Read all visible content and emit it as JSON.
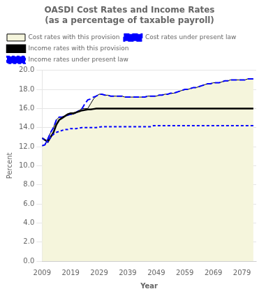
{
  "chart_data": {
    "type": "line",
    "title": "OASDI Cost Rates and Income Rates",
    "subtitle": "(as a percentage of taxable payroll)",
    "x_label": "Year",
    "y_label": "Percent",
    "xlim": [
      2009,
      2084
    ],
    "ylim": [
      0.0,
      20.0
    ],
    "xticks": [
      2009,
      2019,
      2029,
      2039,
      2049,
      2059,
      2069,
      2079
    ],
    "yticks": [
      {
        "value": 0.0,
        "label": "0.0"
      },
      {
        "value": 2.0,
        "label": "2.0"
      },
      {
        "value": 4.0,
        "label": "4.0"
      },
      {
        "value": 6.0,
        "label": "6.0"
      },
      {
        "value": 8.0,
        "label": "8.0"
      },
      {
        "value": 10.0,
        "label": "10.0"
      },
      {
        "value": 12.0,
        "label": "12.0"
      },
      {
        "value": 14.0,
        "label": "14.0"
      },
      {
        "value": 16.0,
        "label": "16.0"
      },
      {
        "value": 18.0,
        "label": "18.0"
      },
      {
        "value": 20.0,
        "label": "20.0"
      }
    ],
    "grid": "y",
    "legend": "upper left",
    "x": [
      2009,
      2010,
      2011,
      2012,
      2013,
      2014,
      2015,
      2016,
      2017,
      2018,
      2019,
      2020,
      2021,
      2022,
      2023,
      2024,
      2025,
      2026,
      2027,
      2028,
      2029,
      2030,
      2031,
      2032,
      2033,
      2034,
      2035,
      2036,
      2037,
      2038,
      2039,
      2040,
      2041,
      2042,
      2043,
      2044,
      2045,
      2046,
      2047,
      2048,
      2049,
      2050,
      2051,
      2052,
      2053,
      2054,
      2055,
      2056,
      2057,
      2058,
      2059,
      2060,
      2061,
      2062,
      2063,
      2064,
      2065,
      2066,
      2067,
      2068,
      2069,
      2070,
      2071,
      2072,
      2073,
      2074,
      2075,
      2076,
      2077,
      2078,
      2079,
      2080,
      2081,
      2082,
      2083
    ],
    "series": [
      {
        "name": "Cost rates with this provision",
        "type": "area",
        "color": "#f5f5dc",
        "line_style": "solid",
        "values": [
          12.1,
          12.2,
          12.8,
          13.5,
          14.0,
          14.8,
          15.1,
          15.1,
          15.2,
          15.3,
          15.4,
          15.4,
          15.6,
          15.8,
          16.0,
          16.0,
          16.0,
          16.5,
          17.0,
          17.3,
          17.5,
          17.5,
          17.4,
          17.4,
          17.3,
          17.3,
          17.3,
          17.3,
          17.3,
          17.2,
          17.2,
          17.2,
          17.2,
          17.2,
          17.2,
          17.2,
          17.2,
          17.3,
          17.3,
          17.3,
          17.3,
          17.4,
          17.4,
          17.5,
          17.5,
          17.6,
          17.6,
          17.7,
          17.8,
          17.9,
          18.0,
          18.0,
          18.1,
          18.2,
          18.2,
          18.3,
          18.4,
          18.5,
          18.6,
          18.6,
          18.7,
          18.7,
          18.7,
          18.8,
          18.9,
          18.9,
          19.0,
          19.0,
          19.0,
          19.0,
          19.0,
          19.0,
          19.1,
          19.1,
          19.1
        ]
      },
      {
        "name": "Cost rates under present law",
        "type": "line",
        "color": "blue",
        "line_style": "long_dashed",
        "values": [
          12.1,
          12.2,
          12.8,
          13.5,
          14.0,
          14.8,
          15.1,
          15.1,
          15.2,
          15.3,
          15.4,
          15.4,
          15.6,
          15.8,
          16.0,
          16.5,
          16.9,
          17.0,
          17.2,
          17.3,
          17.5,
          17.5,
          17.4,
          17.4,
          17.3,
          17.3,
          17.3,
          17.3,
          17.3,
          17.2,
          17.2,
          17.2,
          17.2,
          17.2,
          17.2,
          17.2,
          17.2,
          17.3,
          17.3,
          17.3,
          17.3,
          17.4,
          17.4,
          17.5,
          17.5,
          17.6,
          17.6,
          17.7,
          17.8,
          17.9,
          18.0,
          18.0,
          18.1,
          18.2,
          18.2,
          18.3,
          18.4,
          18.5,
          18.6,
          18.6,
          18.7,
          18.7,
          18.7,
          18.8,
          18.9,
          18.9,
          19.0,
          19.0,
          19.0,
          19.0,
          19.0,
          19.0,
          19.1,
          19.1,
          19.1
        ]
      },
      {
        "name": "Income rates with this provision",
        "type": "line",
        "color": "black",
        "line_style": "solid",
        "values": [
          12.9,
          12.7,
          12.5,
          13.0,
          13.5,
          14.3,
          14.8,
          15.0,
          15.2,
          15.4,
          15.5,
          15.5,
          15.6,
          15.7,
          15.8,
          15.85,
          15.9,
          15.9,
          15.95,
          16.0,
          16.0,
          16.0,
          16.0,
          16.0,
          16.0,
          16.0,
          16.0,
          16.0,
          16.0,
          16.0,
          16.0,
          16.0,
          16.0,
          16.0,
          16.0,
          16.0,
          16.0,
          16.0,
          16.0,
          16.0,
          16.0,
          16.0,
          16.0,
          16.0,
          16.0,
          16.0,
          16.0,
          16.0,
          16.0,
          16.0,
          16.0,
          16.0,
          16.0,
          16.0,
          16.0,
          16.0,
          16.0,
          16.0,
          16.0,
          16.0,
          16.0,
          16.0,
          16.0,
          16.0,
          16.0,
          16.0,
          16.0,
          16.0,
          16.0,
          16.0,
          16.0,
          16.0,
          16.0,
          16.0,
          16.0
        ]
      },
      {
        "name": "Income rates under present law",
        "type": "line",
        "color": "blue",
        "line_style": "dashed",
        "values": [
          12.9,
          12.7,
          12.5,
          13.0,
          13.3,
          13.5,
          13.6,
          13.7,
          13.8,
          13.8,
          13.9,
          13.9,
          13.9,
          13.95,
          14.0,
          14.0,
          14.0,
          14.0,
          14.0,
          14.0,
          14.05,
          14.1,
          14.1,
          14.1,
          14.1,
          14.1,
          14.1,
          14.1,
          14.1,
          14.1,
          14.1,
          14.1,
          14.1,
          14.1,
          14.1,
          14.1,
          14.1,
          14.1,
          14.1,
          14.2,
          14.2,
          14.2,
          14.2,
          14.2,
          14.2,
          14.2,
          14.2,
          14.2,
          14.2,
          14.2,
          14.2,
          14.2,
          14.2,
          14.2,
          14.2,
          14.2,
          14.2,
          14.2,
          14.2,
          14.2,
          14.2,
          14.2,
          14.2,
          14.2,
          14.2,
          14.2,
          14.2,
          14.2,
          14.2,
          14.2,
          14.2,
          14.2,
          14.2,
          14.2,
          14.2
        ]
      }
    ]
  }
}
